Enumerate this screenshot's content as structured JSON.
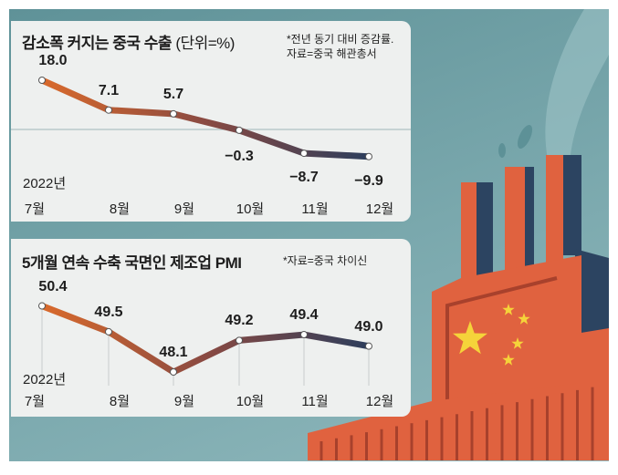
{
  "chart_data": [
    {
      "type": "line",
      "title": "감소폭 커지는 중국 수출",
      "unit": "(단위=%)",
      "note": [
        "*전년 동기 대비 증감률.",
        "자료=중국 해관총서"
      ],
      "year_label": "2022년",
      "categories": [
        "7월",
        "8월",
        "9월",
        "10월",
        "11월",
        "12월"
      ],
      "values": [
        18.0,
        7.1,
        5.7,
        -0.3,
        -8.7,
        -9.9
      ],
      "labels": [
        "18.0",
        "7.1",
        "5.7",
        "−0.3",
        "−8.7",
        "−9.9"
      ],
      "baseline": 0
    },
    {
      "type": "line",
      "title": "5개월 연속 수축 국면인 제조업 PMI",
      "note": [
        "*자료=중국 차이신"
      ],
      "year_label": "2022년",
      "categories": [
        "7월",
        "8월",
        "9월",
        "10월",
        "11월",
        "12월"
      ],
      "values": [
        50.4,
        49.5,
        48.1,
        49.2,
        49.4,
        49.0
      ],
      "labels": [
        "50.4",
        "49.5",
        "48.1",
        "49.2",
        "49.4",
        "49.0"
      ]
    }
  ],
  "colors": {
    "line_start": "#d96a2c",
    "line_end": "#2d3e5c",
    "factory": "#e0623f",
    "factory_dark": "#2c4461",
    "star": "#f5d33a",
    "background": "#6f9fa5",
    "panel": "#eef0ef"
  }
}
